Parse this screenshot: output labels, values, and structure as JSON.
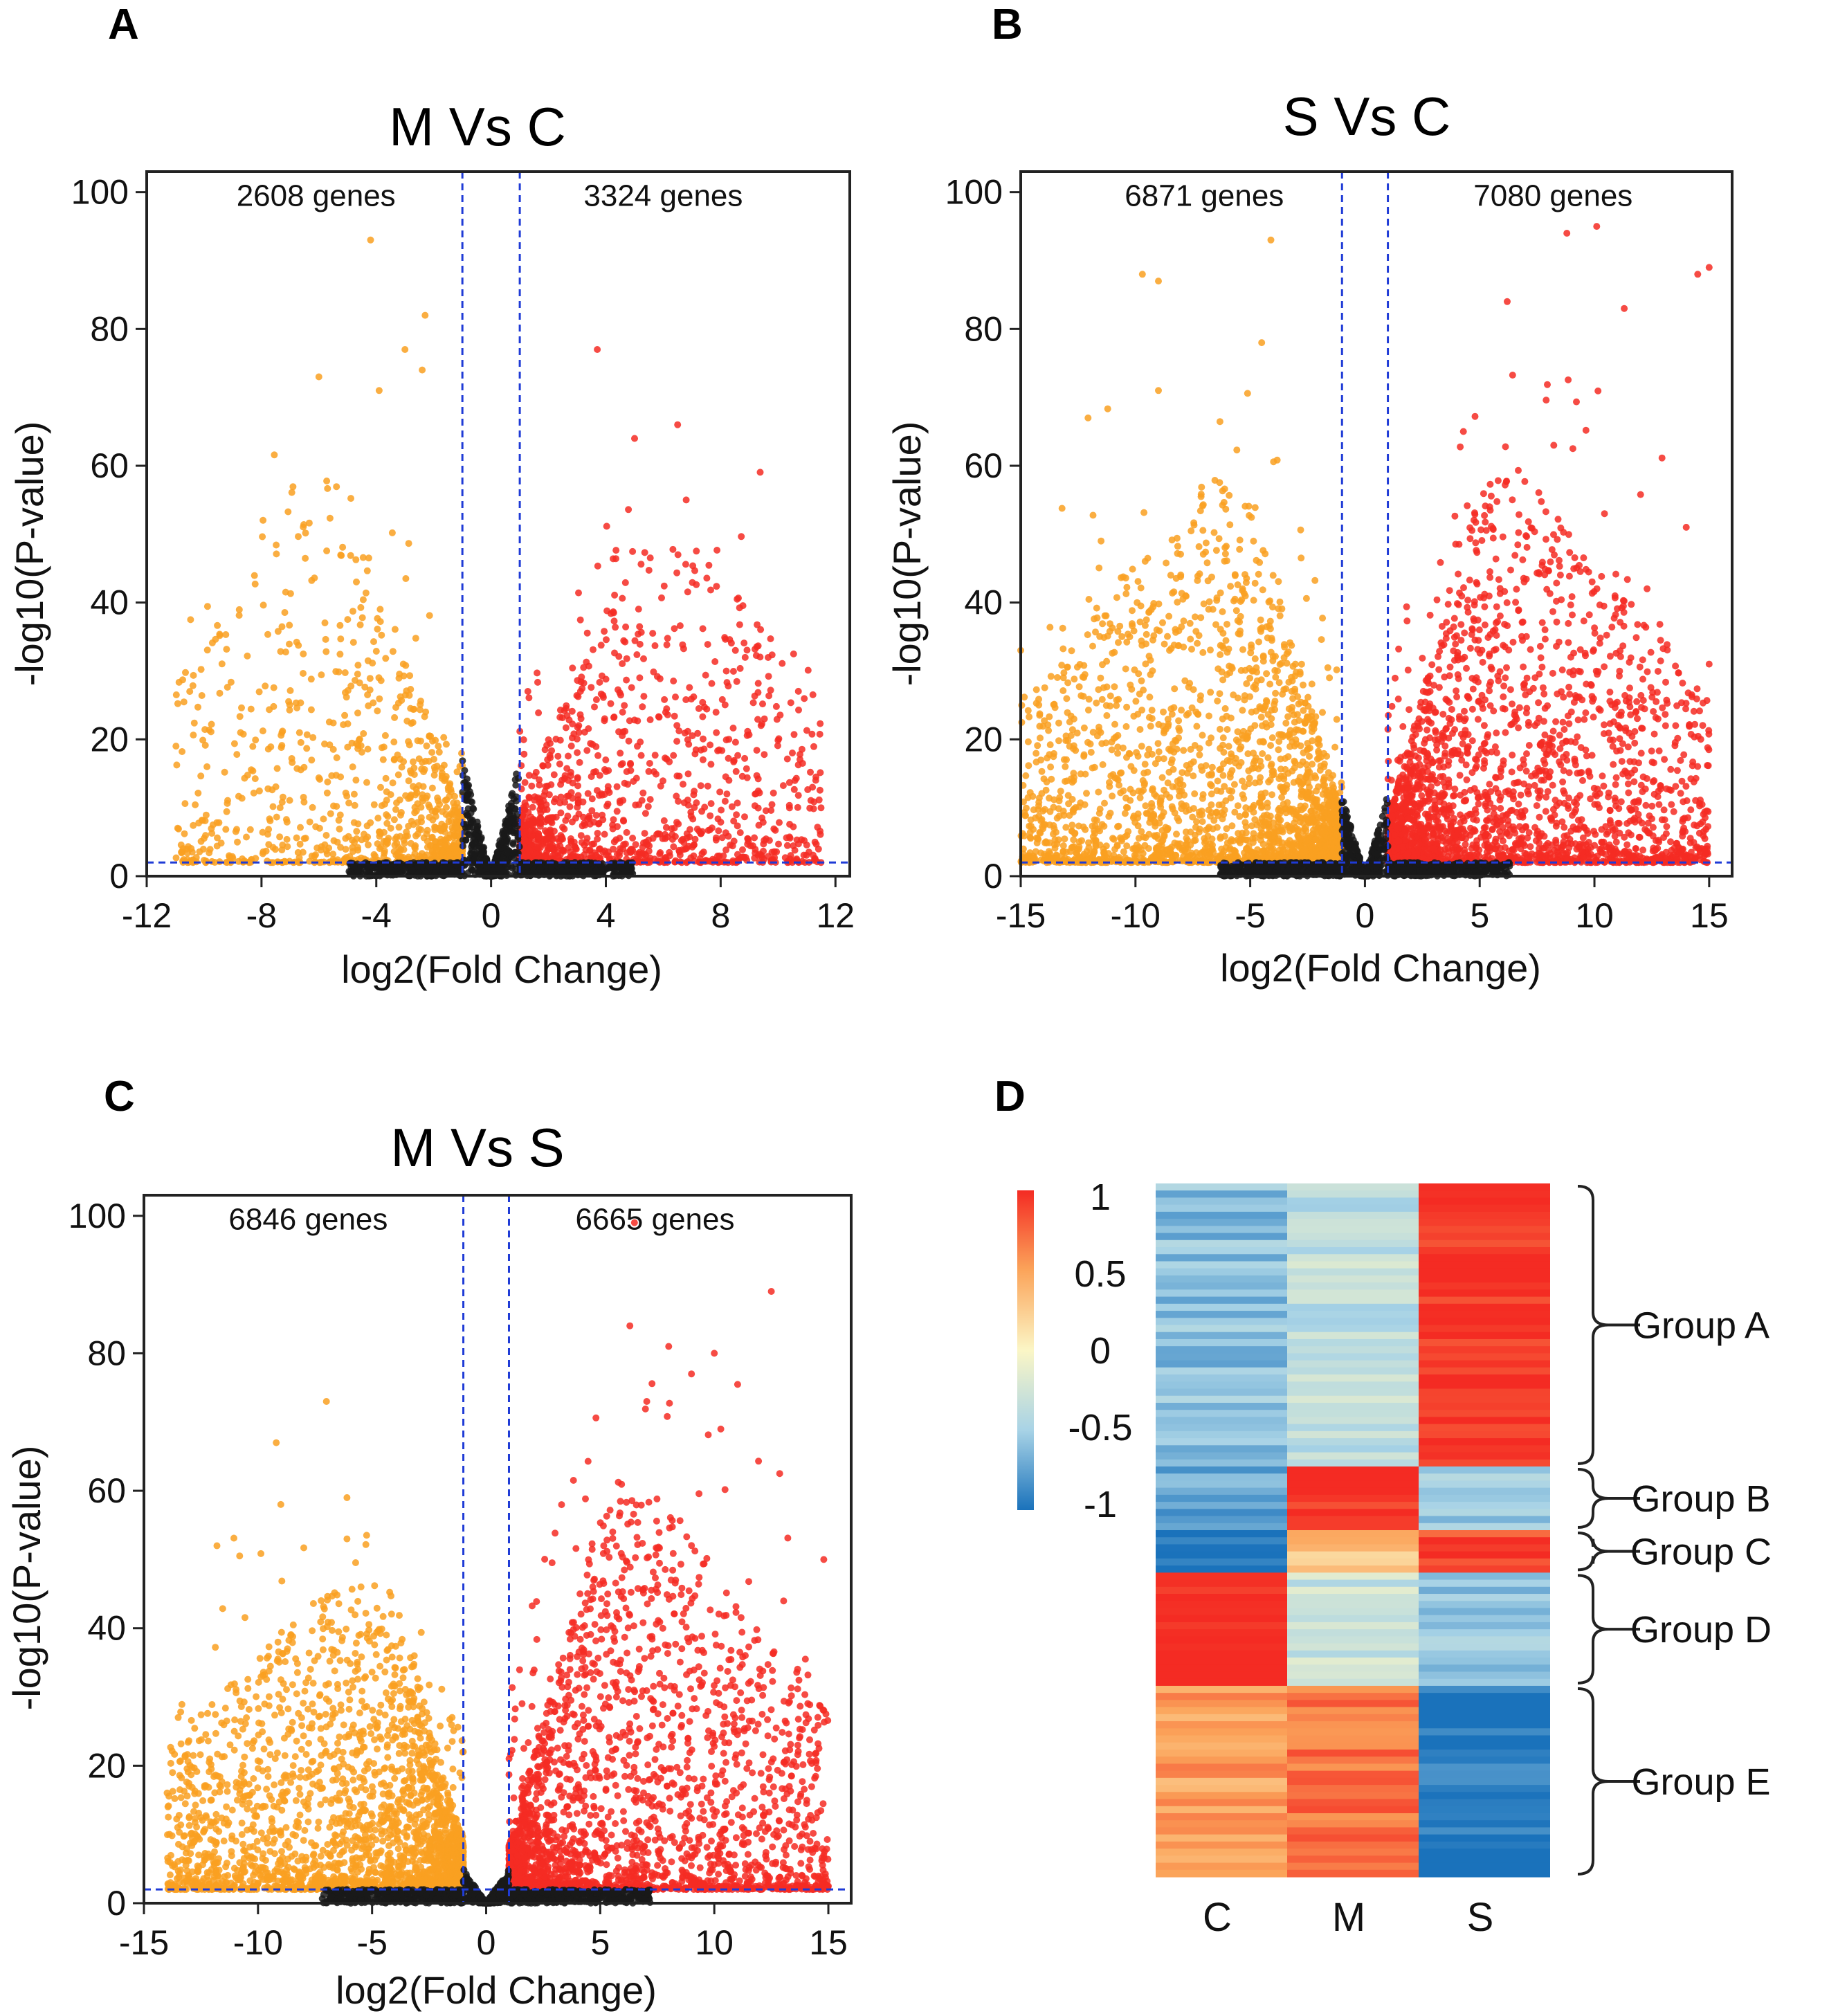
{
  "colors": {
    "down": "#f9a021",
    "up": "#f42b23",
    "ns": "#1a1a1a",
    "threshold": "#1f3bd6",
    "frame": "#222222"
  },
  "chart_data": [
    {
      "type": "scatter",
      "panel": "A",
      "title": "M Vs C",
      "xlabel": "log2(Fold Change)",
      "ylabel": "-log10(P-value)",
      "xlim": [
        -12,
        12.5
      ],
      "ylim": [
        0,
        103
      ],
      "xticks": [
        -12,
        -8,
        -4,
        0,
        4,
        8,
        12
      ],
      "yticks": [
        0,
        20,
        40,
        60,
        80,
        100
      ],
      "thresholds": {
        "fold_change": [
          -1,
          1
        ],
        "neg_log10_p": 2
      },
      "annotations": [
        {
          "text": "2608 genes",
          "x": -6.1,
          "y": 98,
          "side": "down"
        },
        {
          "text": "3324 genes",
          "x": 6.0,
          "y": 98,
          "side": "up"
        }
      ],
      "series": [
        {
          "name": "down-regulated",
          "count": 2608,
          "x_min": -11,
          "x_max": -1,
          "y_top": 93,
          "highlight": [
            [
              -4.2,
              93
            ],
            [
              -2.3,
              82
            ],
            [
              -3.0,
              77
            ],
            [
              -2.4,
              74
            ],
            [
              -6.0,
              73
            ],
            [
              -3.9,
              71
            ],
            [
              -10.5,
              27
            ],
            [
              -9.9,
              16
            ]
          ]
        },
        {
          "name": "up-regulated",
          "count": 3324,
          "x_min": 1,
          "x_max": 11.5,
          "y_top": 77,
          "highlight": [
            [
              3.7,
              77
            ],
            [
              6.5,
              66
            ],
            [
              5.0,
              64
            ],
            [
              6.8,
              55
            ],
            [
              11.2,
              13
            ],
            [
              11.5,
              10
            ],
            [
              9.2,
              12
            ]
          ]
        },
        {
          "name": "not significant",
          "x_min": -6,
          "x_max": 5.5,
          "y_top": 17
        }
      ]
    },
    {
      "type": "scatter",
      "panel": "B",
      "title": "S Vs C",
      "xlabel": "log2(Fold Change)",
      "ylabel": "-log10(P-value)",
      "xlim": [
        -15,
        16
      ],
      "ylim": [
        0,
        103
      ],
      "xticks": [
        -15,
        -10,
        -5,
        0,
        5,
        10,
        15
      ],
      "yticks": [
        0,
        20,
        40,
        60,
        80,
        100
      ],
      "thresholds": {
        "fold_change": [
          -1,
          1
        ],
        "neg_log10_p": 2
      },
      "annotations": [
        {
          "text": "6871 genes",
          "x": -7.0,
          "y": 98,
          "side": "down"
        },
        {
          "text": "7080 genes",
          "x": 8.2,
          "y": 98,
          "side": "up"
        }
      ],
      "series": [
        {
          "name": "down-regulated",
          "count": 6871,
          "x_min": -15,
          "x_max": -1,
          "y_top": 93,
          "highlight": [
            [
              -4.1,
              93
            ],
            [
              -9.7,
              88
            ],
            [
              -9.0,
              87
            ],
            [
              -4.5,
              78
            ],
            [
              -9.0,
              71
            ],
            [
              -15,
              33
            ],
            [
              -11.5,
              49
            ]
          ]
        },
        {
          "name": "up-regulated",
          "count": 7080,
          "x_min": 1,
          "x_max": 15,
          "y_top": 95,
          "highlight": [
            [
              10.1,
              95
            ],
            [
              8.8,
              94
            ],
            [
              14.5,
              88
            ],
            [
              15.0,
              89
            ],
            [
              11.3,
              83
            ],
            [
              6.2,
              84
            ],
            [
              14.0,
              51
            ],
            [
              15.0,
              31
            ]
          ]
        },
        {
          "name": "not significant",
          "x_min": -7,
          "x_max": 7,
          "y_top": 12
        }
      ]
    },
    {
      "type": "scatter",
      "panel": "C",
      "title": "M Vs S",
      "xlabel": "log2(Fold Change)",
      "ylabel": "-log10(P-value)",
      "xlim": [
        -15,
        16
      ],
      "ylim": [
        0,
        103
      ],
      "xticks": [
        -15,
        -10,
        -5,
        0,
        5,
        10,
        15
      ],
      "yticks": [
        0,
        20,
        40,
        60,
        80,
        100
      ],
      "thresholds": {
        "fold_change": [
          -1,
          1
        ],
        "neg_log10_p": 2
      },
      "annotations": [
        {
          "text": "6846 genes",
          "x": -7.8,
          "y": 98,
          "side": "down"
        },
        {
          "text": "6665 genes",
          "x": 7.4,
          "y": 98,
          "side": "up"
        }
      ],
      "series": [
        {
          "name": "down-regulated",
          "count": 6846,
          "x_min": -14,
          "x_max": -1,
          "y_top": 73,
          "highlight": [
            [
              -7.0,
              73
            ],
            [
              -9.2,
              67
            ],
            [
              -11.8,
              52
            ],
            [
              -6.1,
              59
            ],
            [
              -6.1,
              53
            ],
            [
              -13.5,
              27
            ],
            [
              -9.0,
              58
            ]
          ]
        },
        {
          "name": "up-regulated",
          "count": 6665,
          "x_min": 1,
          "x_max": 15,
          "y_top": 99,
          "highlight": [
            [
              6.5,
              99
            ],
            [
              12.5,
              89
            ],
            [
              6.3,
              84
            ],
            [
              8.0,
              81
            ],
            [
              10.0,
              80
            ],
            [
              9.0,
              77
            ],
            [
              14.8,
              50
            ],
            [
              14.4,
              8
            ],
            [
              14.8,
              7
            ]
          ]
        },
        {
          "name": "not significant",
          "x_min": -8,
          "x_max": 8,
          "y_top": 5
        }
      ]
    },
    {
      "type": "heatmap",
      "panel": "D",
      "columns": [
        "C",
        "M",
        "S"
      ],
      "colorbar": {
        "min": -1,
        "max": 1,
        "ticks": [
          "1",
          "0.5",
          "0",
          "-0.5",
          "-1"
        ]
      },
      "groups": [
        {
          "name": "Group A",
          "rows": 40,
          "C": -0.6,
          "M": -0.35,
          "S": 1.0
        },
        {
          "name": "Group B",
          "rows": 9,
          "C": -0.75,
          "M": 1.0,
          "S": -0.5
        },
        {
          "name": "Group C",
          "rows": 6,
          "C": -1.0,
          "M": 0.3,
          "S": 0.9
        },
        {
          "name": "Group D",
          "rows": 16,
          "C": 1.0,
          "M": -0.3,
          "S": -0.6
        },
        {
          "name": "Group E",
          "rows": 27,
          "C": 0.5,
          "M": 0.7,
          "S": -1.0
        }
      ]
    }
  ]
}
